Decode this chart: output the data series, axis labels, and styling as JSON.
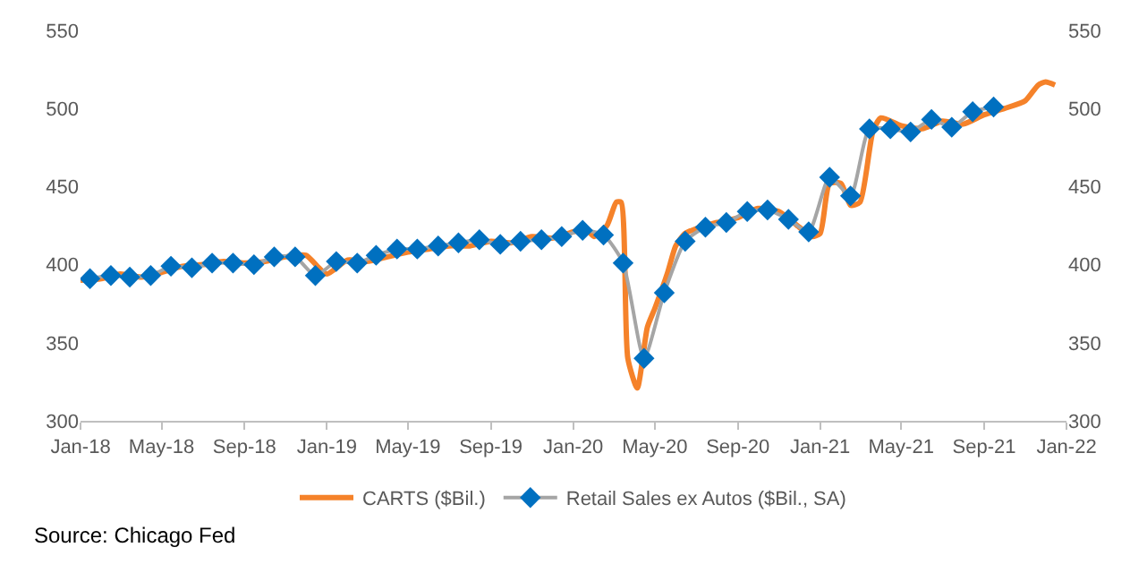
{
  "chart_data": {
    "type": "line",
    "xlim": [
      "2018-01-01",
      "2022-01-01"
    ],
    "xticks": [
      {
        "value": "2018-01-01",
        "label": "Jan-18"
      },
      {
        "value": "2018-05-01",
        "label": "May-18"
      },
      {
        "value": "2018-09-01",
        "label": "Sep-18"
      },
      {
        "value": "2019-01-01",
        "label": "Jan-19"
      },
      {
        "value": "2019-05-01",
        "label": "May-19"
      },
      {
        "value": "2019-09-01",
        "label": "Sep-19"
      },
      {
        "value": "2020-01-01",
        "label": "Jan-20"
      },
      {
        "value": "2020-05-01",
        "label": "May-20"
      },
      {
        "value": "2020-09-01",
        "label": "Sep-20"
      },
      {
        "value": "2021-01-01",
        "label": "Jan-21"
      },
      {
        "value": "2021-05-01",
        "label": "May-21"
      },
      {
        "value": "2021-09-01",
        "label": "Sep-21"
      },
      {
        "value": "2022-01-01",
        "label": "Jan-22"
      }
    ],
    "ylim": [
      300,
      550
    ],
    "yticks": [
      300,
      350,
      400,
      450,
      500,
      550
    ],
    "y2lim": [
      300,
      550
    ],
    "y2ticks": [
      300,
      350,
      400,
      450,
      500,
      550
    ],
    "legend": "bottom",
    "annotations": [
      "Source: Chicago Fed"
    ],
    "series": [
      {
        "name": "CARTS ($Bil.)",
        "color": "#f5822a",
        "marker": "none",
        "x": [
          "2018-01-01",
          "2018-02-01",
          "2018-03-01",
          "2018-04-01",
          "2018-05-01",
          "2018-06-01",
          "2018-07-01",
          "2018-08-01",
          "2018-09-01",
          "2018-10-01",
          "2018-11-01",
          "2018-12-01",
          "2018-12-20",
          "2019-01-01",
          "2019-02-01",
          "2019-03-01",
          "2019-04-01",
          "2019-05-01",
          "2019-06-01",
          "2019-07-01",
          "2019-08-01",
          "2019-09-01",
          "2019-10-01",
          "2019-11-01",
          "2019-12-01",
          "2020-01-01",
          "2020-01-20",
          "2020-02-01",
          "2020-02-20",
          "2020-03-05",
          "2020-03-12",
          "2020-03-22",
          "2020-04-05",
          "2020-04-20",
          "2020-05-01",
          "2020-05-20",
          "2020-06-01",
          "2020-06-15",
          "2020-07-01",
          "2020-08-01",
          "2020-09-01",
          "2020-10-01",
          "2020-11-01",
          "2020-12-01",
          "2020-12-20",
          "2021-01-01",
          "2021-01-15",
          "2021-02-01",
          "2021-02-15",
          "2021-03-01",
          "2021-03-20",
          "2021-04-01",
          "2021-05-01",
          "2021-06-01",
          "2021-07-01",
          "2021-08-01",
          "2021-09-01",
          "2021-10-01",
          "2021-11-01",
          "2021-11-20",
          "2021-12-01",
          "2021-12-15"
        ],
        "values": [
          390,
          391,
          394,
          392,
          395,
          399,
          400,
          402,
          401,
          402,
          405,
          406,
          398,
          394,
          403,
          402,
          405,
          408,
          410,
          412,
          412,
          415,
          414,
          418,
          417,
          421,
          423,
          418,
          425,
          440,
          440,
          340,
          321,
          360,
          372,
          395,
          412,
          420,
          423,
          427,
          430,
          436,
          434,
          424,
          418,
          420,
          452,
          452,
          438,
          440,
          485,
          494,
          489,
          487,
          492,
          490,
          496,
          500,
          505,
          515,
          517,
          515
        ]
      },
      {
        "name": "Retail Sales ex Autos ($Bil., SA)",
        "color": "#0070c0",
        "marker": "diamond",
        "x": [
          "2018-01-15",
          "2018-02-15",
          "2018-03-15",
          "2018-04-15",
          "2018-05-15",
          "2018-06-15",
          "2018-07-15",
          "2018-08-15",
          "2018-09-15",
          "2018-10-15",
          "2018-11-15",
          "2018-12-15",
          "2019-01-15",
          "2019-02-15",
          "2019-03-15",
          "2019-04-15",
          "2019-05-15",
          "2019-06-15",
          "2019-07-15",
          "2019-08-15",
          "2019-09-15",
          "2019-10-15",
          "2019-11-15",
          "2019-12-15",
          "2020-01-15",
          "2020-02-15",
          "2020-03-15",
          "2020-04-15",
          "2020-05-15",
          "2020-06-15",
          "2020-07-15",
          "2020-08-15",
          "2020-09-15",
          "2020-10-15",
          "2020-11-15",
          "2020-12-15",
          "2021-01-15",
          "2021-02-15",
          "2021-03-15",
          "2021-04-15",
          "2021-05-15",
          "2021-06-15",
          "2021-07-15",
          "2021-08-15",
          "2021-09-15"
        ],
        "values": [
          391,
          393,
          392,
          393,
          399,
          398,
          401,
          401,
          400,
          405,
          405,
          393,
          402,
          401,
          406,
          410,
          410,
          412,
          414,
          416,
          413,
          415,
          416,
          418,
          422,
          419,
          401,
          340,
          382,
          415,
          424,
          427,
          434,
          435,
          429,
          421,
          456,
          444,
          487,
          487,
          485,
          493,
          488,
          498,
          501
        ]
      }
    ]
  }
}
